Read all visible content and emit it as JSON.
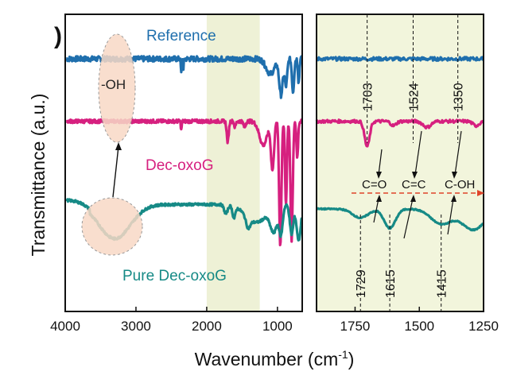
{
  "panel_label": ")",
  "chart_data": {
    "type": "line",
    "title": "",
    "xlabel": "Wavenumber (cm",
    "xlabel_sup": "-1",
    "xlabel_close": ")",
    "ylabel": "Transmittance (a.u.)",
    "panels": [
      {
        "name": "full-range",
        "xlim": [
          4000,
          650
        ],
        "xticks": [
          4000,
          3000,
          2000,
          1000
        ],
        "xtick_labels": [
          "4000",
          "3000",
          "2000",
          "1000"
        ],
        "highlight_region": [
          2000,
          1250
        ]
      },
      {
        "name": "zoom",
        "xlim": [
          1900,
          1250
        ],
        "xticks": [
          1750,
          1500,
          1250
        ],
        "xtick_labels": [
          "1750",
          "1500",
          "1250"
        ],
        "highlight_region": [
          1900,
          1250
        ]
      }
    ],
    "series": [
      {
        "name": "Reference",
        "color": "#1f6fad",
        "offset": 0.85
      },
      {
        "name": "Dec-oxoG",
        "color": "#d6207f",
        "offset": 0.55
      },
      {
        "name": "Pure Dec-oxoG",
        "color": "#168a86",
        "offset": 0.25
      }
    ],
    "peaks_top": [
      {
        "wavenumber": 1703,
        "label": "1703"
      },
      {
        "wavenumber": 1524,
        "label": "1524"
      },
      {
        "wavenumber": 1350,
        "label": "1350"
      }
    ],
    "peaks_bottom": [
      {
        "wavenumber": 1729,
        "label": "1729"
      },
      {
        "wavenumber": 1615,
        "label": "1615"
      },
      {
        "wavenumber": 1415,
        "label": "1415"
      }
    ],
    "bond_labels": [
      "C=O",
      "C=C",
      "C-OH"
    ],
    "annotations": [
      "-OH"
    ]
  }
}
